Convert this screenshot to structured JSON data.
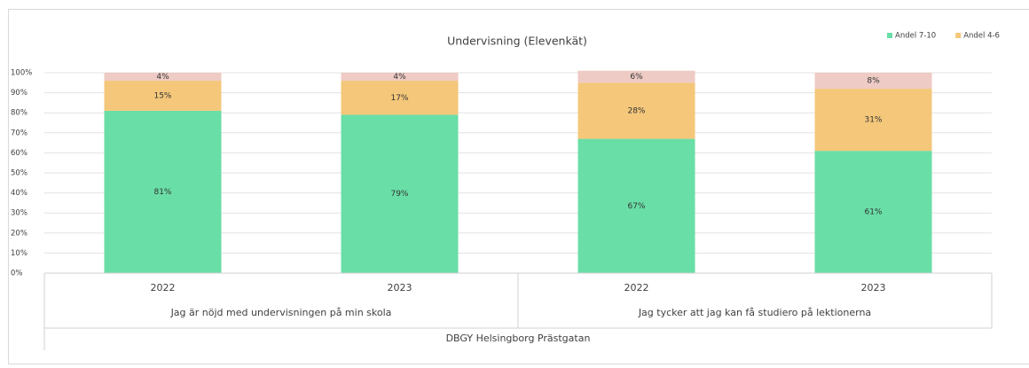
{
  "chart_data": {
    "type": "stacked_bar",
    "title": "Undervisning (Elevenkät)",
    "categories": [
      "2022",
      "2023",
      "2022",
      "2023"
    ],
    "category_groups": [
      "Jag är nöjd med undervisningen på min skola",
      "Jag tycker att jag kan få studiero på lektionerna"
    ],
    "category_super": "DBGY Helsingborg Prästgatan",
    "series": [
      {
        "name": "Andel 7-10",
        "color": "#69dea6",
        "values": [
          81,
          79,
          67,
          61
        ],
        "value_labels": [
          "81%",
          "79%",
          "67%",
          "61%"
        ]
      },
      {
        "name": "Andel 4-6",
        "color": "#f4c77a",
        "values": [
          15,
          17,
          28,
          31
        ],
        "value_labels": [
          "15%",
          "17%",
          "28%",
          "31%"
        ]
      },
      {
        "color": "#eecbc4",
        "values": [
          4,
          4,
          6,
          8
        ],
        "value_labels": [
          "4%",
          "4%",
          "6%",
          "8%"
        ]
      }
    ],
    "ylim": [
      0,
      100
    ],
    "yticks": [
      {
        "value": 0,
        "label": "0%"
      },
      {
        "value": 10,
        "label": "10%"
      },
      {
        "value": 20,
        "label": "20%"
      },
      {
        "value": 30,
        "label": "30%"
      },
      {
        "value": 40,
        "label": "40%"
      },
      {
        "value": 50,
        "label": "50%"
      },
      {
        "value": 60,
        "label": "60%"
      },
      {
        "value": 70,
        "label": "70%"
      },
      {
        "value": 80,
        "label": "80%"
      },
      {
        "value": 90,
        "label": "90%"
      },
      {
        "value": 100,
        "label": "100%"
      }
    ],
    "grid": true,
    "legend": "top-right"
  }
}
